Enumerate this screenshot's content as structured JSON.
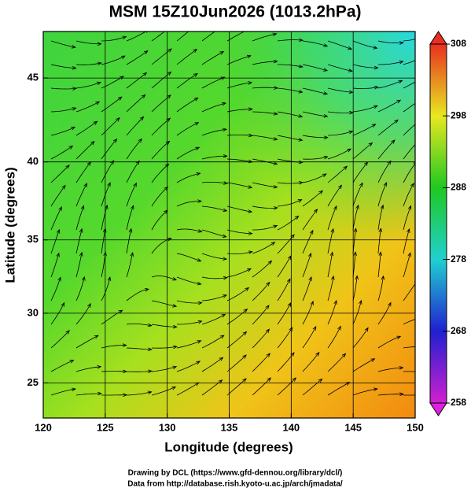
{
  "title": "MSM 15Z10Jun2026 (1013.2hPa)",
  "map": {
    "projection": "mercator",
    "xlabel": "Longitude (degrees)",
    "ylabel": "Latitude  (degrees)",
    "xlim": [
      120,
      150
    ],
    "ylim": [
      22.4,
      47.6
    ],
    "xticks": [
      120,
      125,
      130,
      135,
      140,
      145,
      150
    ],
    "yticks": [
      25,
      30,
      35,
      40,
      45
    ],
    "grid": true
  },
  "colorbar": {
    "lim": [
      258,
      308
    ],
    "ticks": [
      258,
      268,
      278,
      288,
      298,
      308
    ]
  },
  "credits": [
    "Drawing by DCL (https://www.gfd-dennou.org/library/dcl/)",
    "Data from http://database.rish.kyoto-u.ac.jp/arch/jmadata/"
  ]
}
